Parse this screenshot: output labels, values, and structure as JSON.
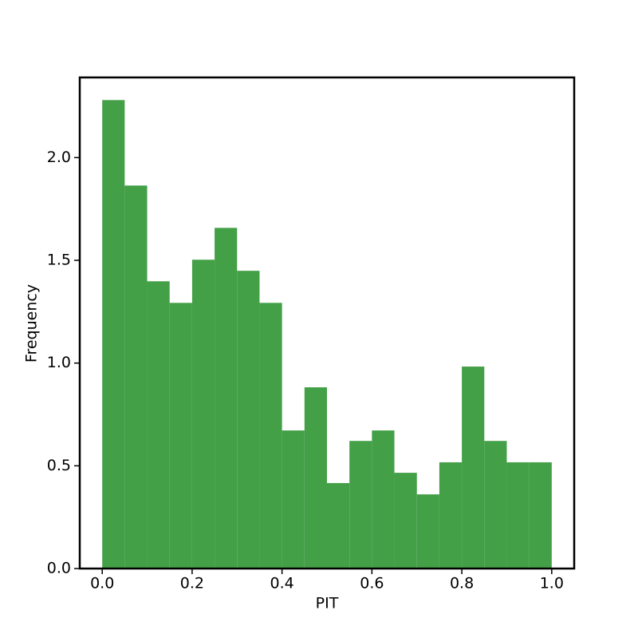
{
  "chart_data": {
    "type": "histogram",
    "xlabel": "PIT",
    "ylabel": "Frequency",
    "color": "#43a047",
    "bins": [
      0.0,
      0.05,
      0.1,
      0.15,
      0.2,
      0.25,
      0.3,
      0.35,
      0.4,
      0.45,
      0.5,
      0.55,
      0.6,
      0.65,
      0.7,
      0.75,
      0.8,
      0.85,
      0.9,
      0.95,
      1.0
    ],
    "values": [
      2.28,
      1.864,
      1.398,
      1.293,
      1.503,
      1.658,
      1.449,
      1.293,
      0.672,
      0.882,
      0.416,
      0.621,
      0.672,
      0.466,
      0.361,
      0.517,
      0.983,
      0.621,
      0.517,
      0.517
    ],
    "xlim": [
      -0.05,
      1.05
    ],
    "ylim": [
      0,
      2.39
    ],
    "xticks": [
      {
        "value": 0,
        "label": "0.0"
      },
      0.2,
      0.4,
      0.6,
      0.8,
      {
        "value": 1,
        "label": "1.0"
      }
    ],
    "yticks": [
      {
        "value": 0,
        "label": "0.0"
      },
      0.5,
      {
        "value": 1,
        "label": "1.0"
      },
      1.5,
      {
        "value": 2,
        "label": "2.0"
      }
    ]
  }
}
